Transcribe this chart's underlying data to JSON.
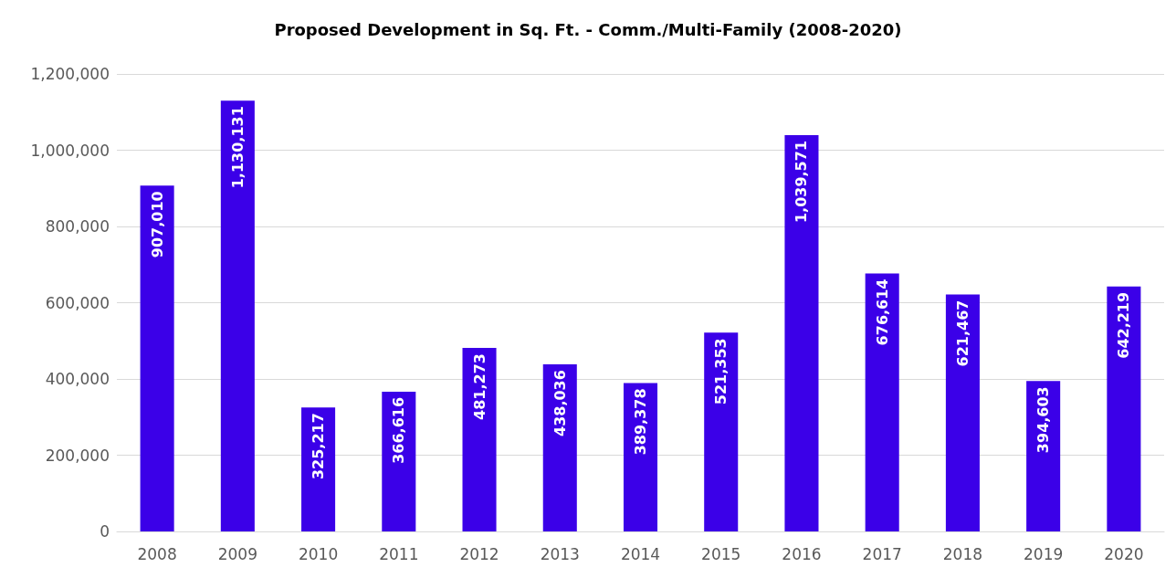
{
  "chart_data": {
    "type": "bar",
    "title": "Proposed Development in Sq. Ft. - Comm./Multi-Family (2008-2020)",
    "categories": [
      "2008",
      "2009",
      "2010",
      "2011",
      "2012",
      "2013",
      "2014",
      "2015",
      "2016",
      "2017",
      "2018",
      "2019",
      "2020"
    ],
    "values": [
      907010,
      1130131,
      325217,
      366616,
      481273,
      438036,
      389378,
      521353,
      1039571,
      676614,
      621467,
      394603,
      642219
    ],
    "value_labels": [
      "907,010",
      "1,130,131",
      "325,217",
      "366,616",
      "481,273",
      "438,036",
      "389,378",
      "521,353",
      "1,039,571",
      "676,614",
      "621,467",
      "394,603",
      "642,219"
    ],
    "color": "#3b00e8",
    "ylim": [
      0,
      1200000
    ],
    "yticks": [
      0,
      {
        "value": 200000,
        "label": "200,000"
      },
      {
        "value": 400000,
        "label": "400,000"
      },
      {
        "value": 600000,
        "label": "600,000"
      },
      {
        "value": 800000,
        "label": "800,000"
      },
      {
        "value": 1000000,
        "label": "1,000,000"
      },
      {
        "value": 1200000,
        "label": "1,200,000"
      }
    ],
    "grid": "y"
  }
}
